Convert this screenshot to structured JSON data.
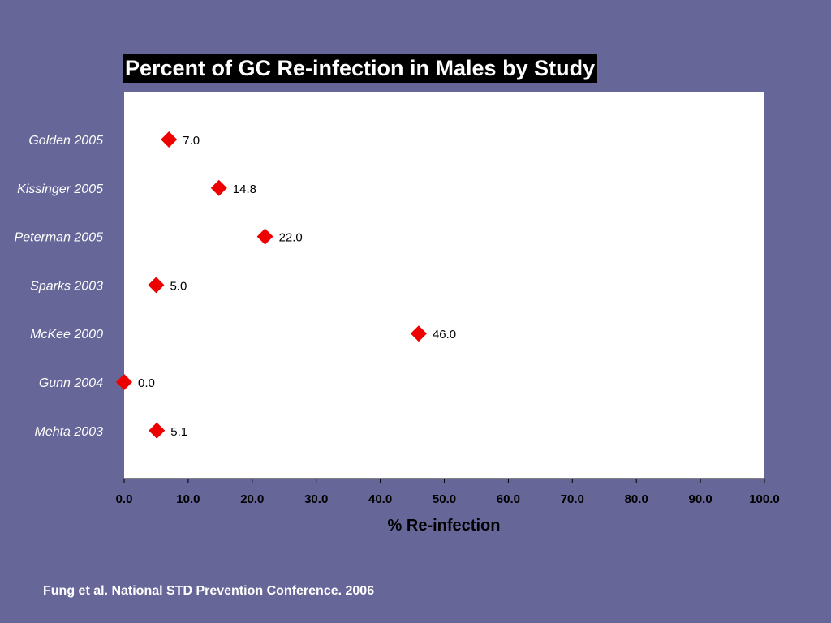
{
  "slide": {
    "background_color": "#666699",
    "footer": "Fung et al. National STD Prevention Conference. 2006"
  },
  "chart_data": {
    "type": "scatter",
    "title": "Percent of GC Re-infection in Males by Study",
    "xlabel": "% Re-infection",
    "ylabel": "",
    "xlim": [
      0,
      100
    ],
    "x_ticks": [
      "0.0",
      "10.0",
      "20.0",
      "30.0",
      "40.0",
      "50.0",
      "60.0",
      "70.0",
      "80.0",
      "90.0",
      "100.0"
    ],
    "categories": [
      "Golden 2005",
      "Kissinger 2005",
      "Peterman 2005",
      "Sparks 2003",
      "McKee 2000",
      "Gunn 2004",
      "Mehta 2003"
    ],
    "values": [
      7.0,
      14.8,
      22.0,
      5.0,
      46.0,
      0.0,
      5.1
    ],
    "value_labels": [
      "7.0",
      "14.8",
      "22.0",
      "5.0",
      "46.0",
      "0.0",
      "5.1"
    ],
    "marker": "diamond",
    "marker_color": "#ee0000",
    "plot_background": "#ffffff",
    "grid": false
  }
}
